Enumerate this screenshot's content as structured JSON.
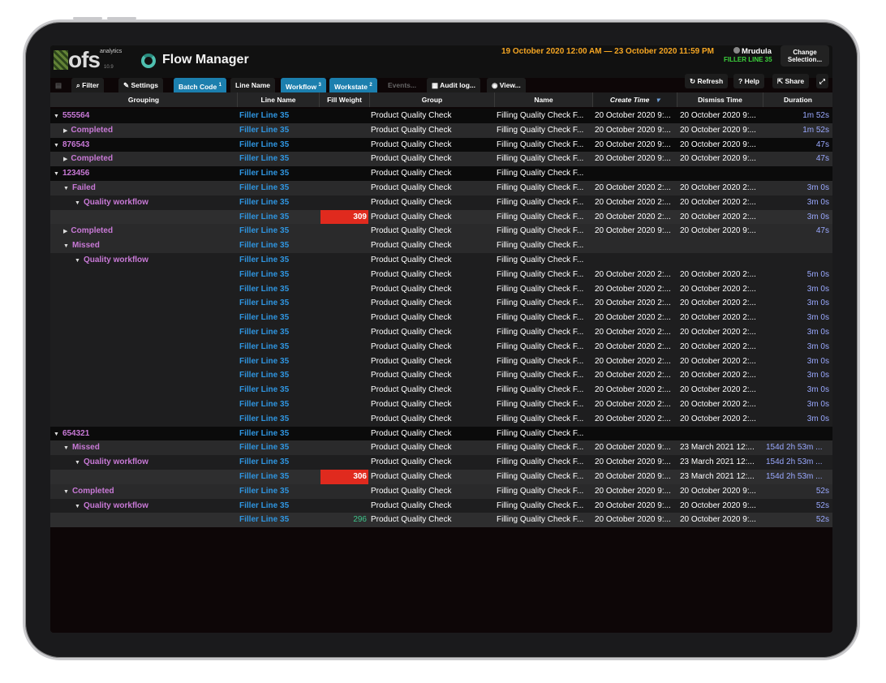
{
  "logo": {
    "brand": "ofs",
    "sub": "analytics",
    "version": "10.9"
  },
  "app_title": "Flow Manager",
  "date_range": "19 October 2020 12:00 AM — 23 October 2020 11:59 PM",
  "user": {
    "name": "Mrudula",
    "line": "FILLER LINE 35"
  },
  "change_button": "Change Selection...",
  "toolbar": {
    "filter": "Filter",
    "settings": "Settings",
    "batch_code": "Batch Code",
    "batch_code_idx": "1",
    "line_name": "Line Name",
    "workflow": "Workflow",
    "workflow_idx": "3",
    "workstate": "Workstate",
    "workstate_idx": "2",
    "events": "Events...",
    "audit_log": "Audit log...",
    "view": "View...",
    "refresh": "Refresh",
    "help": "Help",
    "share": "Share"
  },
  "columns": [
    "Grouping",
    "Line Name",
    "Fill Weight",
    "Group",
    "Name",
    "Create Time",
    "Dismiss Time",
    "Duration"
  ],
  "rows": [
    {
      "lvl": 0,
      "arrow": "▼",
      "label": "555564",
      "line": "Filler Line 35",
      "fw": "",
      "group": "Product Quality Check",
      "name": "Filling Quality Check F...",
      "ct": "20 October 2020 9:...",
      "dt": "20 October 2020 9:...",
      "du": "1m 52s"
    },
    {
      "lvl": 1,
      "arrow": "▶",
      "label": "Completed",
      "line": "Filler Line 35",
      "fw": "",
      "group": "Product Quality Check",
      "name": "Filling Quality Check F...",
      "ct": "20 October 2020 9:...",
      "dt": "20 October 2020 9:...",
      "du": "1m 52s"
    },
    {
      "lvl": 0,
      "arrow": "▼",
      "label": "876543",
      "line": "Filler Line 35",
      "fw": "",
      "group": "Product Quality Check",
      "name": "Filling Quality Check F...",
      "ct": "20 October 2020 9:...",
      "dt": "20 October 2020 9:...",
      "du": "47s"
    },
    {
      "lvl": 1,
      "arrow": "▶",
      "label": "Completed",
      "line": "Filler Line 35",
      "fw": "",
      "group": "Product Quality Check",
      "name": "Filling Quality Check F...",
      "ct": "20 October 2020 9:...",
      "dt": "20 October 2020 9:...",
      "du": "47s"
    },
    {
      "lvl": 0,
      "arrow": "▼",
      "label": "123456",
      "line": "Filler Line 35",
      "fw": "",
      "group": "Product Quality Check",
      "name": "Filling Quality Check F...",
      "ct": "",
      "dt": "",
      "du": ""
    },
    {
      "lvl": 1,
      "arrow": "▼",
      "label": "Failed",
      "line": "Filler Line 35",
      "fw": "",
      "group": "Product Quality Check",
      "name": "Filling Quality Check F...",
      "ct": "20 October 2020 2:...",
      "dt": "20 October 2020 2:...",
      "du": "3m 0s"
    },
    {
      "lvl": 2,
      "arrow": "▼",
      "label": "Quality workflow",
      "line": "Filler Line 35",
      "fw": "",
      "group": "Product Quality Check",
      "name": "Filling Quality Check F...",
      "ct": "20 October 2020 2:...",
      "dt": "20 October 2020 2:...",
      "du": "3m 0s"
    },
    {
      "lvl": 3,
      "arrow": "",
      "label": "",
      "line": "Filler Line 35",
      "fw": "309",
      "fwc": "red",
      "group": "Product Quality Check",
      "name": "Filling Quality Check F...",
      "ct": "20 October 2020 2:...",
      "dt": "20 October 2020 2:...",
      "du": "3m 0s"
    },
    {
      "lvl": 1,
      "arrow": "▶",
      "label": "Completed",
      "line": "Filler Line 35",
      "fw": "",
      "group": "Product Quality Check",
      "name": "Filling Quality Check F...",
      "ct": "20 October 2020 9:...",
      "dt": "20 October 2020 9:...",
      "du": "47s"
    },
    {
      "lvl": 1,
      "arrow": "▼",
      "label": "Missed",
      "line": "Filler Line 35",
      "fw": "",
      "group": "Product Quality Check",
      "name": "Filling Quality Check F...",
      "ct": "",
      "dt": "",
      "du": ""
    },
    {
      "lvl": 2,
      "arrow": "▼",
      "label": "Quality workflow",
      "line": "Filler Line 35",
      "fw": "",
      "group": "Product Quality Check",
      "name": "Filling Quality Check F...",
      "ct": "",
      "dt": "",
      "du": ""
    },
    {
      "lvl": 3,
      "arrow": "",
      "label": "",
      "line": "Filler Line 35",
      "fw": "",
      "group": "Product Quality Check",
      "name": "Filling Quality Check F...",
      "ct": "20 October 2020 2:...",
      "dt": "20 October 2020 2:...",
      "du": "5m 0s"
    },
    {
      "lvl": 3,
      "arrow": "",
      "label": "",
      "line": "Filler Line 35",
      "fw": "",
      "group": "Product Quality Check",
      "name": "Filling Quality Check F...",
      "ct": "20 October 2020 2:...",
      "dt": "20 October 2020 2:...",
      "du": "3m 0s"
    },
    {
      "lvl": 3,
      "arrow": "",
      "label": "",
      "line": "Filler Line 35",
      "fw": "",
      "group": "Product Quality Check",
      "name": "Filling Quality Check F...",
      "ct": "20 October 2020 2:...",
      "dt": "20 October 2020 2:...",
      "du": "3m 0s"
    },
    {
      "lvl": 3,
      "arrow": "",
      "label": "",
      "line": "Filler Line 35",
      "fw": "",
      "group": "Product Quality Check",
      "name": "Filling Quality Check F...",
      "ct": "20 October 2020 2:...",
      "dt": "20 October 2020 2:...",
      "du": "3m 0s"
    },
    {
      "lvl": 3,
      "arrow": "",
      "label": "",
      "line": "Filler Line 35",
      "fw": "",
      "group": "Product Quality Check",
      "name": "Filling Quality Check F...",
      "ct": "20 October 2020 2:...",
      "dt": "20 October 2020 2:...",
      "du": "3m 0s"
    },
    {
      "lvl": 3,
      "arrow": "",
      "label": "",
      "line": "Filler Line 35",
      "fw": "",
      "group": "Product Quality Check",
      "name": "Filling Quality Check F...",
      "ct": "20 October 2020 2:...",
      "dt": "20 October 2020 2:...",
      "du": "3m 0s"
    },
    {
      "lvl": 3,
      "arrow": "",
      "label": "",
      "line": "Filler Line 35",
      "fw": "",
      "group": "Product Quality Check",
      "name": "Filling Quality Check F...",
      "ct": "20 October 2020 2:...",
      "dt": "20 October 2020 2:...",
      "du": "3m 0s"
    },
    {
      "lvl": 3,
      "arrow": "",
      "label": "",
      "line": "Filler Line 35",
      "fw": "",
      "group": "Product Quality Check",
      "name": "Filling Quality Check F...",
      "ct": "20 October 2020 2:...",
      "dt": "20 October 2020 2:...",
      "du": "3m 0s"
    },
    {
      "lvl": 3,
      "arrow": "",
      "label": "",
      "line": "Filler Line 35",
      "fw": "",
      "group": "Product Quality Check",
      "name": "Filling Quality Check F...",
      "ct": "20 October 2020 2:...",
      "dt": "20 October 2020 2:...",
      "du": "3m 0s"
    },
    {
      "lvl": 3,
      "arrow": "",
      "label": "",
      "line": "Filler Line 35",
      "fw": "",
      "group": "Product Quality Check",
      "name": "Filling Quality Check F...",
      "ct": "20 October 2020 2:...",
      "dt": "20 October 2020 2:...",
      "du": "3m 0s"
    },
    {
      "lvl": 3,
      "arrow": "",
      "label": "",
      "line": "Filler Line 35",
      "fw": "",
      "group": "Product Quality Check",
      "name": "Filling Quality Check F...",
      "ct": "20 October 2020 2:...",
      "dt": "20 October 2020 2:...",
      "du": "3m 0s"
    },
    {
      "lvl": 0,
      "arrow": "▼",
      "label": "654321",
      "line": "Filler Line 35",
      "fw": "",
      "group": "Product Quality Check",
      "name": "Filling Quality Check F...",
      "ct": "",
      "dt": "",
      "du": ""
    },
    {
      "lvl": 1,
      "arrow": "▼",
      "label": "Missed",
      "line": "Filler Line 35",
      "fw": "",
      "group": "Product Quality Check",
      "name": "Filling Quality Check F...",
      "ct": "20 October 2020 9:...",
      "dt": "23 March 2021 12:...",
      "du": "154d 2h 53m ..."
    },
    {
      "lvl": 2,
      "arrow": "▼",
      "label": "Quality workflow",
      "line": "Filler Line 35",
      "fw": "",
      "group": "Product Quality Check",
      "name": "Filling Quality Check F...",
      "ct": "20 October 2020 9:...",
      "dt": "23 March 2021 12:...",
      "du": "154d 2h 53m ..."
    },
    {
      "lvl": 3,
      "arrow": "",
      "label": "",
      "line": "Filler Line 35",
      "fw": "306",
      "fwc": "red",
      "group": "Product Quality Check",
      "name": "Filling Quality Check F...",
      "ct": "20 October 2020 9:...",
      "dt": "23 March 2021 12:...",
      "du": "154d 2h 53m ..."
    },
    {
      "lvl": 1,
      "arrow": "▼",
      "label": "Completed",
      "line": "Filler Line 35",
      "fw": "",
      "group": "Product Quality Check",
      "name": "Filling Quality Check F...",
      "ct": "20 October 2020 9:...",
      "dt": "20 October 2020 9:...",
      "du": "52s"
    },
    {
      "lvl": 2,
      "arrow": "▼",
      "label": "Quality workflow",
      "line": "Filler Line 35",
      "fw": "",
      "group": "Product Quality Check",
      "name": "Filling Quality Check F...",
      "ct": "20 October 2020 9:...",
      "dt": "20 October 2020 9:...",
      "du": "52s"
    },
    {
      "lvl": 3,
      "arrow": "",
      "label": "",
      "line": "Filler Line 35",
      "fw": "296",
      "fwc": "green",
      "group": "Product Quality Check",
      "name": "Filling Quality Check F...",
      "ct": "20 October 2020 9:...",
      "dt": "20 October 2020 9:...",
      "du": "52s"
    }
  ]
}
